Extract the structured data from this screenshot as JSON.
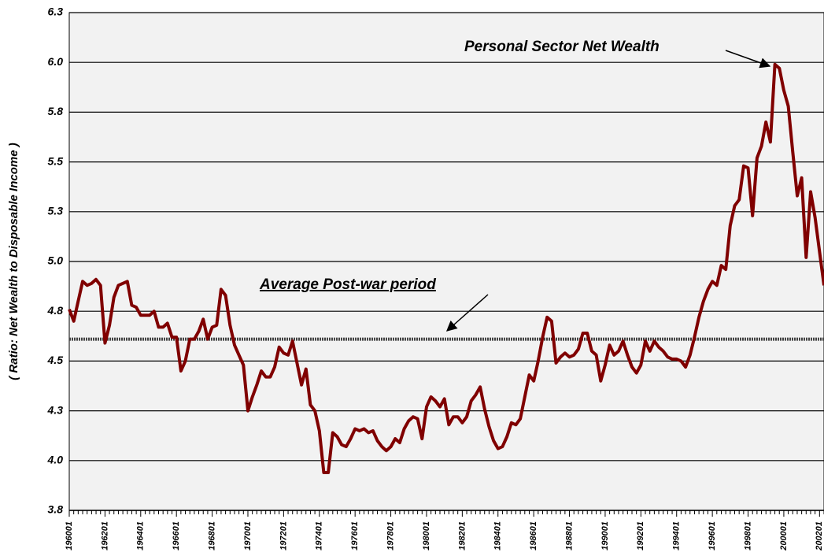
{
  "chart_data": {
    "type": "line",
    "ylabel": "( Ratio: Net Wealth to Disposable Income )",
    "categories": [
      "196001",
      null,
      null,
      null,
      null,
      null,
      null,
      null,
      "196201",
      null,
      null,
      null,
      null,
      null,
      null,
      null,
      "196401",
      null,
      null,
      null,
      null,
      null,
      null,
      null,
      "196601",
      null,
      null,
      null,
      null,
      null,
      null,
      null,
      "196801",
      null,
      null,
      null,
      null,
      null,
      null,
      null,
      "197001",
      null,
      null,
      null,
      null,
      null,
      null,
      null,
      "197201",
      null,
      null,
      null,
      null,
      null,
      null,
      null,
      "197401",
      null,
      null,
      null,
      null,
      null,
      null,
      null,
      "197601",
      null,
      null,
      null,
      null,
      null,
      null,
      null,
      "197801",
      null,
      null,
      null,
      null,
      null,
      null,
      null,
      "198001",
      null,
      null,
      null,
      null,
      null,
      null,
      null,
      "198201",
      null,
      null,
      null,
      null,
      null,
      null,
      null,
      "198401",
      null,
      null,
      null,
      null,
      null,
      null,
      null,
      "198601",
      null,
      null,
      null,
      null,
      null,
      null,
      null,
      "198801",
      null,
      null,
      null,
      null,
      null,
      null,
      null,
      "199001",
      null,
      null,
      null,
      null,
      null,
      null,
      null,
      "199201",
      null,
      null,
      null,
      null,
      null,
      null,
      null,
      "199401",
      null,
      null,
      null,
      null,
      null,
      null,
      null,
      "199601",
      null,
      null,
      null,
      null,
      null,
      null,
      null,
      "199801",
      null,
      null,
      null,
      null,
      null,
      null,
      null,
      "200001",
      null,
      null,
      null,
      null,
      null,
      null,
      null,
      "200201",
      null
    ],
    "series": [
      {
        "name": "Personal Sector Net Wealth",
        "color": "#800000",
        "values": [
          4.76,
          4.7,
          4.8,
          4.9,
          4.88,
          4.89,
          4.91,
          4.88,
          4.59,
          4.68,
          4.82,
          4.88,
          4.89,
          4.9,
          4.78,
          4.77,
          4.73,
          4.73,
          4.73,
          4.75,
          4.67,
          4.67,
          4.69,
          4.62,
          4.62,
          4.45,
          4.5,
          4.61,
          4.61,
          4.65,
          4.71,
          4.61,
          4.67,
          4.68,
          4.86,
          4.83,
          4.68,
          4.58,
          4.53,
          4.48,
          4.25,
          4.32,
          4.38,
          4.45,
          4.42,
          4.42,
          4.47,
          4.57,
          4.54,
          4.53,
          4.6,
          4.49,
          4.38,
          4.46,
          4.28,
          4.25,
          4.15,
          3.94,
          3.94,
          4.14,
          4.12,
          4.08,
          4.07,
          4.11,
          4.16,
          4.15,
          4.16,
          4.14,
          4.15,
          4.1,
          4.07,
          4.05,
          4.07,
          4.11,
          4.09,
          4.16,
          4.2,
          4.22,
          4.21,
          4.11,
          4.27,
          4.32,
          4.3,
          4.27,
          4.31,
          4.18,
          4.22,
          4.22,
          4.19,
          4.22,
          4.3,
          4.33,
          4.37,
          4.26,
          4.17,
          4.1,
          4.06,
          4.07,
          4.12,
          4.19,
          4.18,
          4.21,
          4.32,
          4.43,
          4.4,
          4.5,
          4.62,
          4.72,
          4.7,
          4.49,
          4.52,
          4.54,
          4.52,
          4.53,
          4.56,
          4.64,
          4.64,
          4.55,
          4.53,
          4.4,
          4.48,
          4.58,
          4.53,
          4.55,
          4.6,
          4.53,
          4.47,
          4.44,
          4.48,
          4.6,
          4.55,
          4.6,
          4.57,
          4.55,
          4.52,
          4.51,
          4.51,
          4.5,
          4.47,
          4.53,
          4.62,
          4.72,
          4.8,
          4.86,
          4.9,
          4.88,
          4.98,
          4.96,
          5.18,
          5.28,
          5.31,
          5.48,
          5.47,
          5.23,
          5.52,
          5.58,
          5.7,
          5.6,
          5.99,
          5.97,
          5.86,
          5.78,
          5.55,
          5.33,
          5.42,
          5.02,
          5.35,
          5.22,
          5.05,
          4.88
        ]
      }
    ],
    "reference_line": {
      "name": "Average Post-war period",
      "value": 4.61
    },
    "ylim": [
      3.75,
      6.25
    ],
    "yticks": [
      {
        "value": 3.75,
        "label": "3.8"
      },
      {
        "value": 4.0,
        "label": "4.0"
      },
      {
        "value": 4.25,
        "label": "4.3"
      },
      {
        "value": 4.5,
        "label": "4.5"
      },
      {
        "value": 4.75,
        "label": "4.8"
      },
      {
        "value": 5.0,
        "label": "5.0"
      },
      {
        "value": 5.25,
        "label": "5.3"
      },
      {
        "value": 5.5,
        "label": "5.5"
      },
      {
        "value": 5.75,
        "label": "5.8"
      },
      {
        "value": 6.0,
        "label": "6.0"
      },
      {
        "value": 6.25,
        "label": "6.3"
      }
    ],
    "grid": true
  }
}
